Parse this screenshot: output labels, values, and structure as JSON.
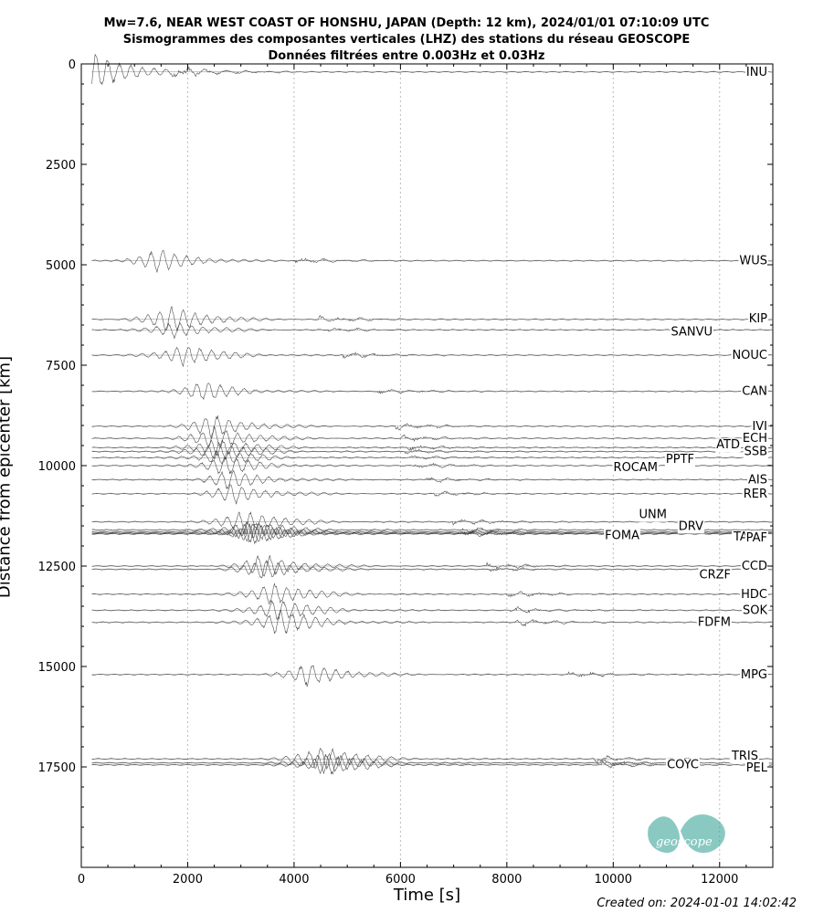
{
  "title_lines": [
    "Mw=7.6, NEAR WEST COAST OF HONSHU, JAPAN (Depth: 12 km), 2024/01/01 07:10:09 UTC",
    "Sismogrammes des composantes verticales (LHZ) des stations du réseau GEOSCOPE",
    "Données filtrées entre 0.003Hz et 0.03Hz"
  ],
  "footer": {
    "created": "Created on: 2024-01-01 14:02:42",
    "logo_text": "geoscope"
  },
  "colors": {
    "trace": "#333333",
    "grid": "#bbbbbb",
    "logo": "#2a9d8f"
  },
  "chart_data": {
    "type": "line",
    "xlabel": "Time [s]",
    "ylabel": "Distance from epicenter [km]",
    "xlim": [
      0,
      13000
    ],
    "ylim": [
      20000,
      0
    ],
    "y_inverted": true,
    "xticks": [
      0,
      2000,
      4000,
      6000,
      8000,
      10000,
      12000
    ],
    "xtick_labels": [
      "0",
      "2000",
      "4000",
      "6000",
      "8000",
      "10000",
      "12000"
    ],
    "yticks": [
      0,
      2500,
      5000,
      7500,
      10000,
      12500,
      15000,
      17500
    ],
    "ytick_labels": [
      "0",
      "2500",
      "5000",
      "7500",
      "10000",
      "12500",
      "15000",
      "17500"
    ],
    "grid": "vertical dotted",
    "stations": [
      {
        "name": "INU",
        "distance": 200,
        "arrival": 100,
        "amp": 28
      },
      {
        "name": "WUS",
        "distance": 4900,
        "arrival": 1400,
        "amp": 14
      },
      {
        "name": "KIP",
        "distance": 6360,
        "arrival": 1650,
        "amp": 16
      },
      {
        "name": "SANVU",
        "distance": 6620,
        "arrival": 1750,
        "amp": 10
      },
      {
        "name": "NOUC",
        "distance": 7250,
        "arrival": 1900,
        "amp": 14
      },
      {
        "name": "CAN",
        "distance": 8150,
        "arrival": 2250,
        "amp": 12
      },
      {
        "name": "IVI",
        "distance": 9020,
        "arrival": 2450,
        "amp": 14
      },
      {
        "name": "ECH",
        "distance": 9320,
        "arrival": 2500,
        "amp": 14
      },
      {
        "name": "ATD",
        "distance": 9550,
        "arrival": 2550,
        "amp": 12
      },
      {
        "name": "SSB",
        "distance": 9650,
        "arrival": 2550,
        "amp": 12
      },
      {
        "name": "PPTF",
        "distance": 9800,
        "arrival": 2600,
        "amp": 10
      },
      {
        "name": "ROCAM",
        "distance": 10000,
        "arrival": 2650,
        "amp": 12
      },
      {
        "name": "AIS",
        "distance": 10350,
        "arrival": 2750,
        "amp": 12
      },
      {
        "name": "RER",
        "distance": 10700,
        "arrival": 2850,
        "amp": 12
      },
      {
        "name": "UNM",
        "distance": 11400,
        "arrival": 3050,
        "amp": 14
      },
      {
        "name": "DRV",
        "distance": 11600,
        "arrival": 3150,
        "amp": 12
      },
      {
        "name": "FOMA",
        "distance": 11650,
        "arrival": 3150,
        "amp": 14
      },
      {
        "name": "TAM",
        "distance": 11680,
        "arrival": 3200,
        "amp": 12
      },
      {
        "name": "PAF",
        "distance": 11700,
        "arrival": 3200,
        "amp": 12
      },
      {
        "name": "CCD",
        "distance": 12500,
        "arrival": 3400,
        "amp": 14
      },
      {
        "name": "CRZF",
        "distance": 12580,
        "arrival": 3400,
        "amp": 12
      },
      {
        "name": "HDC",
        "distance": 13200,
        "arrival": 3600,
        "amp": 14
      },
      {
        "name": "SOK",
        "distance": 13600,
        "arrival": 3650,
        "amp": 14
      },
      {
        "name": "FDFM",
        "distance": 13900,
        "arrival": 3700,
        "amp": 16
      },
      {
        "name": "MPG",
        "distance": 15200,
        "arrival": 4250,
        "amp": 14
      },
      {
        "name": "TRIS",
        "distance": 17300,
        "arrival": 4500,
        "amp": 16
      },
      {
        "name": "COYC",
        "distance": 17400,
        "arrival": 4550,
        "amp": 14
      },
      {
        "name": "PEL",
        "distance": 17450,
        "arrival": 4600,
        "amp": 14
      }
    ]
  }
}
